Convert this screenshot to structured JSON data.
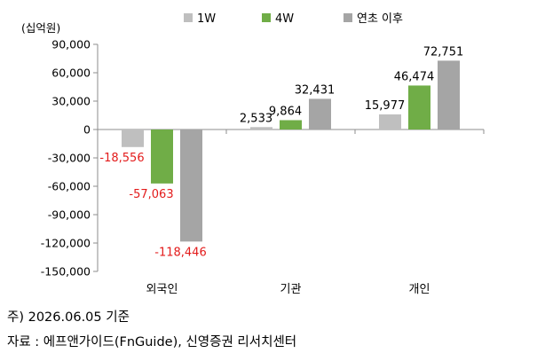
{
  "chart_data": {
    "type": "bar",
    "unit_label": "(십억원)",
    "categories": [
      "외국인",
      "기관",
      "개인"
    ],
    "series": [
      {
        "name": "1W",
        "color": "#bfbfbf",
        "values": [
          -18556,
          2533,
          15977
        ],
        "labels": [
          "-18,556",
          "2,533",
          "15,977"
        ]
      },
      {
        "name": "4W",
        "color": "#70ad47",
        "values": [
          -57063,
          9864,
          46474
        ],
        "labels": [
          "-57,063",
          "9,864",
          "46,474"
        ]
      },
      {
        "name": "연초 이후",
        "color": "#a5a5a5",
        "values": [
          -118446,
          32431,
          72751
        ],
        "labels": [
          "-118,446",
          "32,431",
          "72,751"
        ]
      }
    ],
    "ylim": [
      -150000,
      90000
    ],
    "yticks": [
      90000,
      60000,
      30000,
      0,
      -30000,
      -60000,
      -90000,
      -120000,
      -150000
    ],
    "ytick_labels": [
      "90,000",
      "60,000",
      "30,000",
      "0",
      "-30,000",
      "-60,000",
      "-90,000",
      "-120,000",
      "-150,000"
    ],
    "legend_position": "top",
    "negative_label_color": "#e31b1b",
    "grid": false
  },
  "footer": {
    "note": "주) 2026.06.05 기준",
    "source": "자료 : 에프앤가이드(FnGuide),  신영증권  리서치센터"
  }
}
